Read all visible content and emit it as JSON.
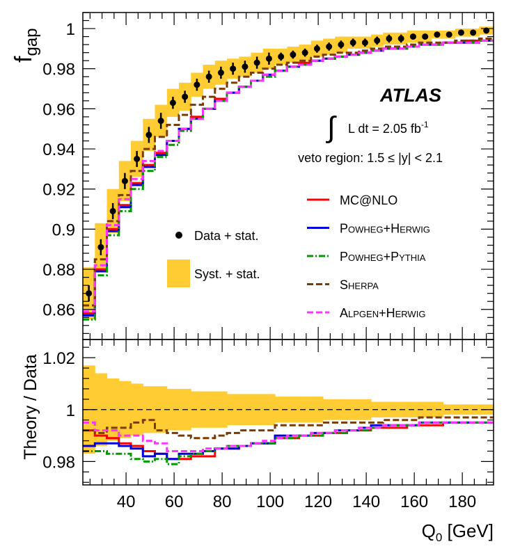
{
  "chart_data": [
    {
      "type": "line",
      "panel": "main",
      "ylabel": "f",
      "ylabel_sub": "gap",
      "ylim": [
        0.845,
        1.008
      ],
      "yticks": [
        0.86,
        0.88,
        0.9,
        0.92,
        0.94,
        0.96,
        0.98,
        1
      ],
      "ytick_labels": [
        "0.86",
        "0.88",
        "0.9",
        "0.92",
        "0.94",
        "0.96",
        "0.98",
        "1"
      ],
      "xlim": [
        22,
        193
      ],
      "atlas_label": "ATLAS",
      "lumi_prefix": "L dt = 2.05 fb",
      "lumi_sup": "-1",
      "region_label": "veto region: 1.5 ≤ |y| < 2.1",
      "legend_data": [
        "Data + stat.",
        "Syst. + stat."
      ],
      "bin_edges": [
        22,
        27,
        32,
        37,
        42,
        47,
        52,
        57,
        62,
        67,
        72,
        77,
        82,
        87,
        92,
        97,
        102,
        107,
        112,
        117,
        122,
        127,
        132,
        137,
        142,
        147,
        152,
        157,
        162,
        167,
        172,
        177,
        182,
        187,
        193
      ],
      "data": {
        "x": [
          24.5,
          29.5,
          34.5,
          39.5,
          44.5,
          49.5,
          54.5,
          59.5,
          64.5,
          69.5,
          74.5,
          79.5,
          84.5,
          89.5,
          94.5,
          99.5,
          104.5,
          109.5,
          114.5,
          119.5,
          124.5,
          129.5,
          134.5,
          139.5,
          144.5,
          149.5,
          154.5,
          159.5,
          164.5,
          169.5,
          174.5,
          179.5,
          184.5,
          190
        ],
        "y": [
          0.868,
          0.891,
          0.909,
          0.924,
          0.935,
          0.947,
          0.954,
          0.963,
          0.966,
          0.972,
          0.976,
          0.978,
          0.98,
          0.981,
          0.983,
          0.985,
          0.986,
          0.987,
          0.988,
          0.99,
          0.991,
          0.992,
          0.993,
          0.993,
          0.994,
          0.995,
          0.995,
          0.996,
          0.996,
          0.997,
          0.997,
          0.998,
          0.998,
          0.999
        ],
        "err": [
          0.004,
          0.004,
          0.004,
          0.004,
          0.004,
          0.004,
          0.004,
          0.003,
          0.003,
          0.003,
          0.003,
          0.003,
          0.003,
          0.003,
          0.003,
          0.003,
          0.002,
          0.002,
          0.002,
          0.002,
          0.002,
          0.002,
          0.002,
          0.002,
          0.002,
          0.002,
          0.002,
          0.001,
          0.001,
          0.001,
          0.001,
          0.001,
          0.001,
          0.001
        ],
        "syst": [
          0.013,
          0.012,
          0.011,
          0.01,
          0.009,
          0.008,
          0.008,
          0.007,
          0.007,
          0.006,
          0.006,
          0.006,
          0.005,
          0.005,
          0.005,
          0.005,
          0.004,
          0.004,
          0.004,
          0.004,
          0.004,
          0.004,
          0.003,
          0.003,
          0.003,
          0.003,
          0.003,
          0.003,
          0.003,
          0.002,
          0.002,
          0.002,
          0.002,
          0.002
        ]
      },
      "series": [
        {
          "name": "MC@NLO",
          "color": "#ff0000",
          "dash": "",
          "values": [
            0.858,
            0.88,
            0.9,
            0.912,
            0.923,
            0.932,
            0.938,
            0.944,
            0.95,
            0.956,
            0.96,
            0.965,
            0.968,
            0.971,
            0.974,
            0.977,
            0.979,
            0.981,
            0.983,
            0.984,
            0.985,
            0.986,
            0.987,
            0.988,
            0.989,
            0.99,
            0.99,
            0.991,
            0.992,
            0.992,
            0.993,
            0.993,
            0.994,
            0.994
          ]
        },
        {
          "name": "POWHEG+HERWIG",
          "color": "#0000dd",
          "dash": "",
          "values": [
            0.857,
            0.879,
            0.899,
            0.911,
            0.922,
            0.931,
            0.937,
            0.944,
            0.95,
            0.955,
            0.96,
            0.964,
            0.968,
            0.971,
            0.974,
            0.977,
            0.979,
            0.981,
            0.982,
            0.984,
            0.985,
            0.986,
            0.987,
            0.988,
            0.989,
            0.99,
            0.99,
            0.991,
            0.992,
            0.992,
            0.993,
            0.993,
            0.993,
            0.994
          ]
        },
        {
          "name": "POWHEG+PYTHIA",
          "color": "#009900",
          "dash": "9 3 2 3",
          "values": [
            0.855,
            0.877,
            0.897,
            0.909,
            0.92,
            0.929,
            0.936,
            0.942,
            0.949,
            0.955,
            0.96,
            0.964,
            0.968,
            0.971,
            0.974,
            0.976,
            0.979,
            0.981,
            0.982,
            0.984,
            0.985,
            0.986,
            0.987,
            0.988,
            0.989,
            0.99,
            0.99,
            0.991,
            0.992,
            0.992,
            0.993,
            0.993,
            0.993,
            0.994
          ]
        },
        {
          "name": "SHERPA",
          "color": "#7a3b00",
          "dash": "9 4",
          "values": [
            0.862,
            0.885,
            0.904,
            0.917,
            0.929,
            0.94,
            0.946,
            0.952,
            0.957,
            0.962,
            0.966,
            0.97,
            0.973,
            0.976,
            0.978,
            0.98,
            0.982,
            0.983,
            0.984,
            0.986,
            0.987,
            0.988,
            0.988,
            0.989,
            0.99,
            0.991,
            0.991,
            0.992,
            0.993,
            0.993,
            0.993,
            0.994,
            0.994,
            0.995
          ]
        },
        {
          "name": "ALPGEN+HERWIG",
          "color": "#ff33ff",
          "dash": "9 4",
          "values": [
            0.859,
            0.882,
            0.902,
            0.915,
            0.925,
            0.934,
            0.939,
            0.944,
            0.95,
            0.955,
            0.96,
            0.964,
            0.968,
            0.971,
            0.974,
            0.977,
            0.979,
            0.981,
            0.982,
            0.984,
            0.985,
            0.986,
            0.987,
            0.988,
            0.989,
            0.99,
            0.99,
            0.991,
            0.992,
            0.992,
            0.993,
            0.993,
            0.993,
            0.994
          ]
        }
      ],
      "legend_series": [
        {
          "name": "MC@NLO",
          "parts": [
            {
              "t": "MC@NLO",
              "small": false
            }
          ]
        },
        {
          "name": "POWHEG+HERWIG",
          "parts": [
            {
              "t": "P",
              "small": false
            },
            {
              "t": "OWHEG",
              "small": true
            },
            {
              "t": "+H",
              "small": false
            },
            {
              "t": "ERWIG",
              "small": true
            }
          ]
        },
        {
          "name": "POWHEG+PYTHIA",
          "parts": [
            {
              "t": "P",
              "small": false
            },
            {
              "t": "OWHEG",
              "small": true
            },
            {
              "t": "+P",
              "small": false
            },
            {
              "t": "YTHIA",
              "small": true
            }
          ]
        },
        {
          "name": "SHERPA",
          "parts": [
            {
              "t": "S",
              "small": false
            },
            {
              "t": "HERPA",
              "small": true
            }
          ]
        },
        {
          "name": "ALPGEN+HERWIG",
          "parts": [
            {
              "t": "A",
              "small": false
            },
            {
              "t": "LPGEN",
              "small": true
            },
            {
              "t": "+H",
              "small": false
            },
            {
              "t": "ERWIG",
              "small": true
            }
          ]
        }
      ]
    },
    {
      "type": "line",
      "panel": "ratio",
      "ylabel": "Theory / Data",
      "xlabel": "Q",
      "xlabel_sub": "0",
      "xlabel_unit": " [GeV]",
      "xlim": [
        22,
        193
      ],
      "ylim": [
        0.971,
        1.027
      ],
      "yticks": [
        0.98,
        1,
        1.02
      ],
      "ytick_labels": [
        "0.98",
        "1",
        "1.02"
      ],
      "xticks": [
        40,
        60,
        80,
        100,
        120,
        140,
        160,
        180
      ],
      "xtick_labels": [
        "40",
        "60",
        "80",
        "100",
        "120",
        "140",
        "160",
        "180"
      ],
      "reference_line": 1,
      "band": [
        0.017,
        0.014,
        0.012,
        0.011,
        0.01,
        0.009,
        0.009,
        0.008,
        0.008,
        0.007,
        0.007,
        0.007,
        0.006,
        0.006,
        0.006,
        0.006,
        0.005,
        0.005,
        0.005,
        0.005,
        0.004,
        0.004,
        0.004,
        0.004,
        0.003,
        0.003,
        0.003,
        0.003,
        0.003,
        0.003,
        0.002,
        0.002,
        0.002,
        0.002
      ],
      "series": [
        {
          "name": "MC@NLO",
          "values": [
            0.992,
            0.99,
            0.989,
            0.987,
            0.986,
            0.984,
            0.983,
            0.981,
            0.981,
            0.982,
            0.982,
            0.985,
            0.985,
            0.986,
            0.987,
            0.987,
            0.989,
            0.989,
            0.99,
            0.99,
            0.991,
            0.991,
            0.992,
            0.992,
            0.993,
            0.993,
            0.993,
            0.994,
            0.994,
            0.994,
            0.995,
            0.995,
            0.995,
            0.995
          ]
        },
        {
          "name": "POWHEG+HERWIG",
          "values": [
            0.986,
            0.987,
            0.987,
            0.986,
            0.985,
            0.982,
            0.983,
            0.981,
            0.983,
            0.983,
            0.984,
            0.985,
            0.985,
            0.986,
            0.987,
            0.987,
            0.99,
            0.99,
            0.99,
            0.991,
            0.991,
            0.992,
            0.992,
            0.993,
            0.994,
            0.994,
            0.994,
            0.994,
            0.995,
            0.995,
            0.995,
            0.995,
            0.995,
            0.995
          ]
        },
        {
          "name": "POWHEG+PYTHIA",
          "values": [
            0.984,
            0.984,
            0.983,
            0.983,
            0.981,
            0.98,
            0.981,
            0.979,
            0.982,
            0.983,
            0.984,
            0.985,
            0.986,
            0.986,
            0.987,
            0.987,
            0.989,
            0.989,
            0.99,
            0.99,
            0.991,
            0.991,
            0.992,
            0.992,
            0.993,
            0.994,
            0.994,
            0.994,
            0.995,
            0.995,
            0.995,
            0.995,
            0.995,
            0.995
          ]
        },
        {
          "name": "SHERPA",
          "values": [
            0.992,
            0.991,
            0.993,
            0.993,
            0.995,
            0.996,
            0.992,
            0.991,
            0.99,
            0.989,
            0.989,
            0.99,
            0.991,
            0.992,
            0.992,
            0.992,
            0.994,
            0.994,
            0.994,
            0.994,
            0.995,
            0.995,
            0.995,
            0.995,
            0.995,
            0.996,
            0.996,
            0.996,
            0.997,
            0.997,
            0.997,
            0.997,
            0.997,
            0.997
          ]
        },
        {
          "name": "ALPGEN+HERWIG",
          "values": [
            0.995,
            0.992,
            0.992,
            0.99,
            0.99,
            0.988,
            0.987,
            0.984,
            0.984,
            0.984,
            0.985,
            0.985,
            0.986,
            0.986,
            0.987,
            0.988,
            0.989,
            0.99,
            0.99,
            0.991,
            0.991,
            0.992,
            0.992,
            0.993,
            0.993,
            0.994,
            0.994,
            0.994,
            0.995,
            0.995,
            0.995,
            0.995,
            0.995,
            0.995
          ]
        }
      ]
    }
  ],
  "colors": {
    "band": "#ffcc33",
    "data": "#000000",
    "axis": "#000000"
  }
}
